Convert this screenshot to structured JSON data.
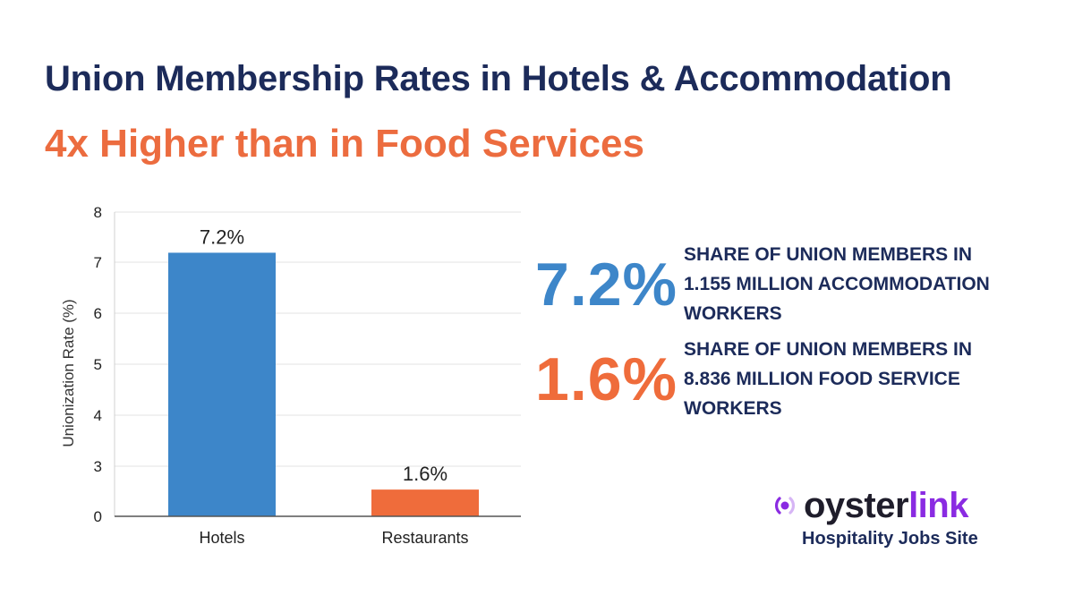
{
  "header": {
    "title": "Union Membership Rates in Hotels & Accommodation",
    "subtitle": "4x Higher than in Food Services"
  },
  "colors": {
    "title": "#1c2b5a",
    "accent_orange": "#ec6c3f",
    "hotels_bar": "#3d86c9",
    "restaurants_bar": "#ef6c3b",
    "logo_dark": "#1f1d2b",
    "logo_purple": "#8a2be2"
  },
  "chart_data": {
    "type": "bar",
    "categories": [
      "Hotels",
      "Restaurants"
    ],
    "values": [
      7.2,
      1.6
    ],
    "value_labels": [
      "7.2%",
      "1.6%"
    ],
    "ylabel": "Unionization Rate (%)",
    "xlabel": "",
    "y_ticks": [
      0,
      3,
      4,
      5,
      6,
      7,
      8
    ],
    "ylim": [
      0,
      8
    ],
    "grid": true,
    "bar_colors": [
      "#3d86c9",
      "#ef6c3b"
    ]
  },
  "stats": [
    {
      "value": "7.2%",
      "color": "#3d86c9",
      "lines": [
        "SHARE OF UNION MEMBERS IN",
        "1.155 MILLION ACCOMMODATION",
        "WORKERS"
      ]
    },
    {
      "value": "1.6%",
      "color": "#ef6c3b",
      "lines": [
        "SHARE OF UNION MEMBERS IN",
        "8.836 MILLION FOOD SERVICE",
        "WORKERS"
      ]
    }
  ],
  "logo": {
    "name_dark": "oyster",
    "name_accent": "link",
    "tagline": "Hospitality Jobs Site",
    "icon": "oysterlink-signal-icon"
  }
}
